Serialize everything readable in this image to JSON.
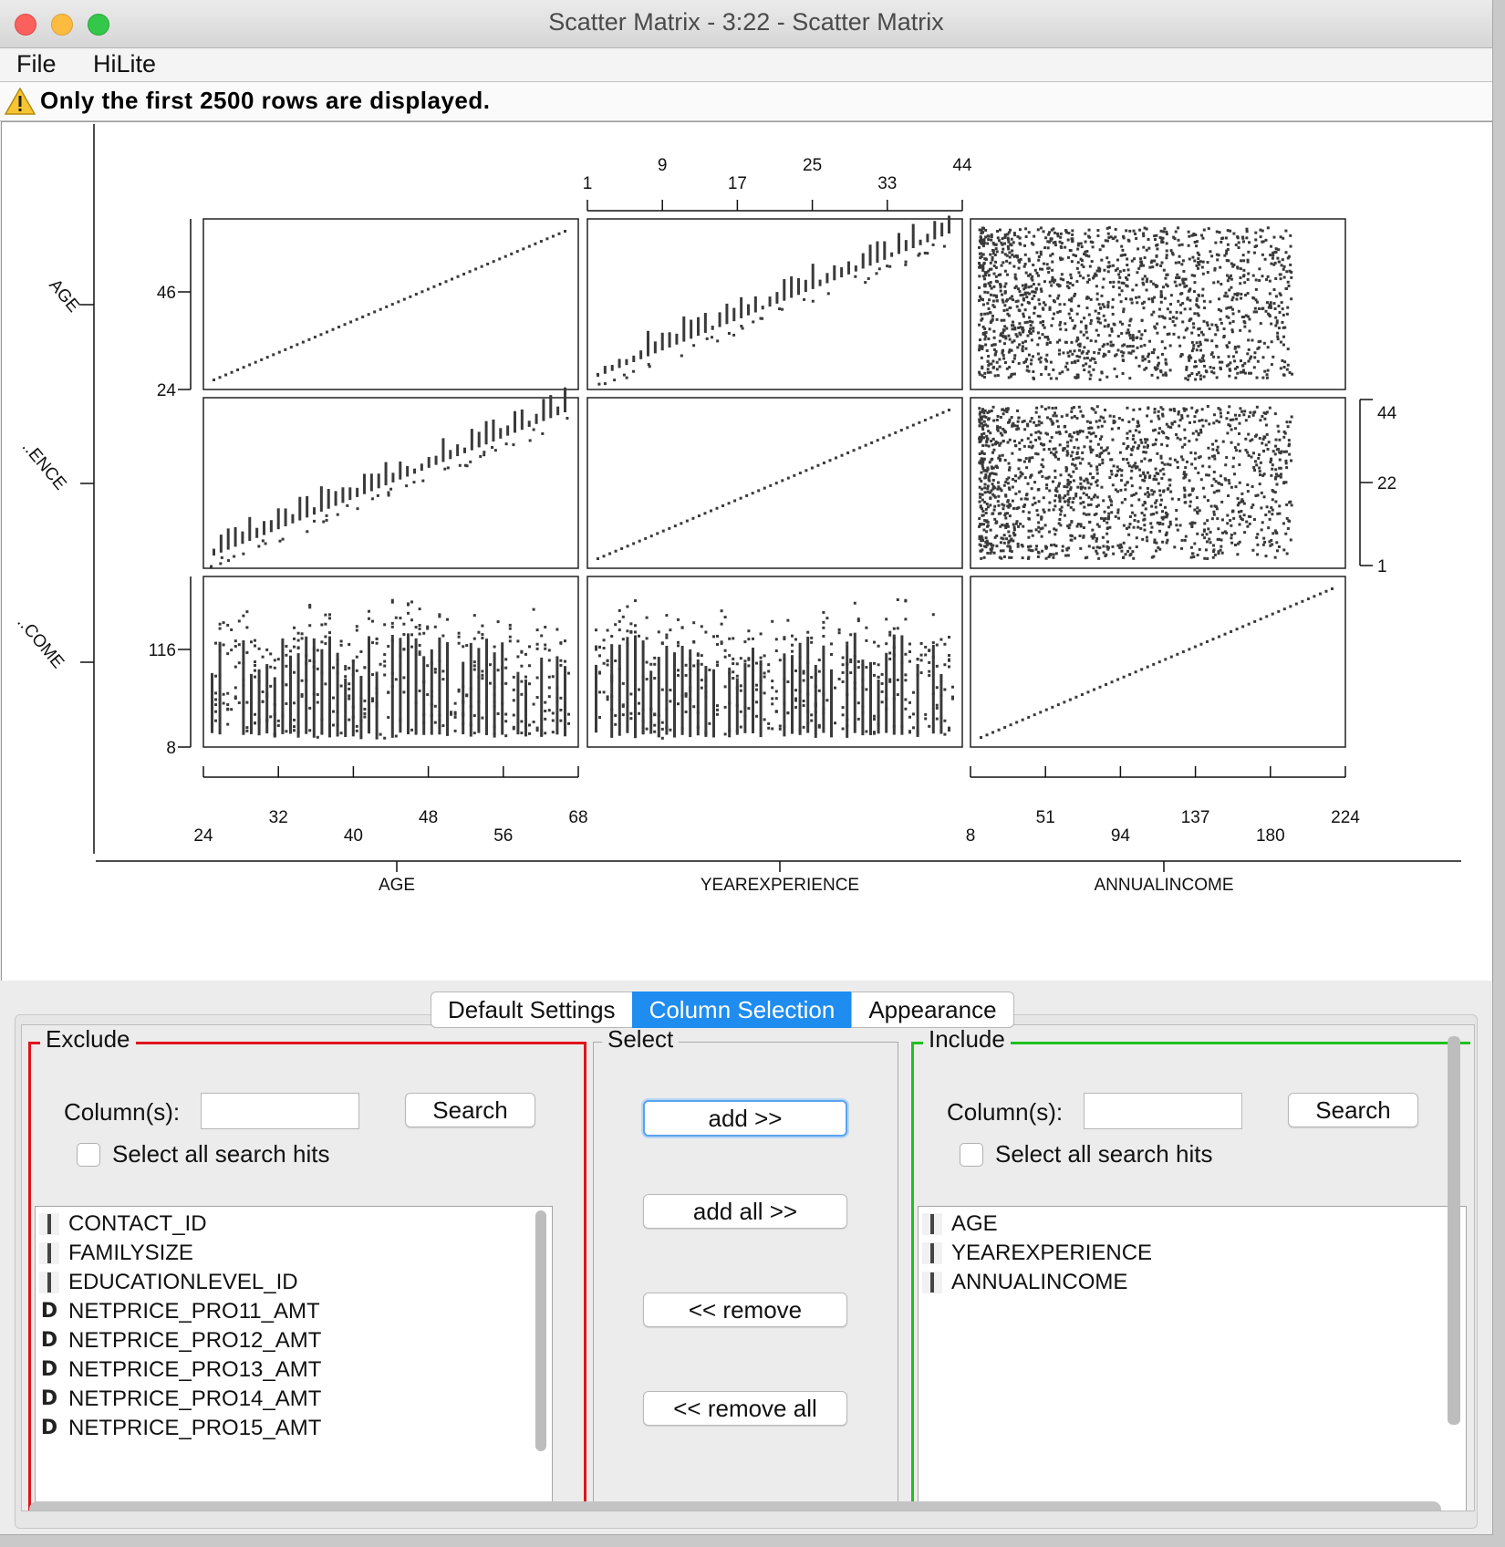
{
  "window": {
    "title": "Scatter Matrix - 3:22 - Scatter Matrix"
  },
  "menu": {
    "items": [
      "File",
      "HiLite"
    ]
  },
  "warning": {
    "icon": "warning-icon",
    "text": "Only the first 2500 rows are displayed."
  },
  "chart_data": {
    "type": "scatter",
    "title": "",
    "variables": [
      "AGE",
      "YEAREXPERIENCE",
      "ANNUALINCOME"
    ],
    "row_labels": [
      "AGE",
      "..ENCE",
      "..COME"
    ],
    "axes": {
      "AGE": {
        "range": [
          24,
          68
        ],
        "ticks": [
          "24",
          "32",
          "40",
          "48",
          "56",
          "68"
        ],
        "left_ticks": [
          "24",
          "46"
        ]
      },
      "YEAREXPERIENCE": {
        "range": [
          1,
          44
        ],
        "ticks": [
          "1",
          "9",
          "17",
          "25",
          "33",
          "44"
        ],
        "right_ticks": [
          "1",
          "22",
          "44"
        ]
      },
      "ANNUALINCOME": {
        "range": [
          8,
          224
        ],
        "ticks": [
          "8",
          "51",
          "94",
          "137",
          "180",
          "224"
        ],
        "left_ticks": [
          "8",
          "116"
        ]
      }
    },
    "panels": [
      {
        "row": "AGE",
        "col": "AGE",
        "pattern": "diagonal-line"
      },
      {
        "row": "AGE",
        "col": "YEAREXPERIENCE",
        "pattern": "increasing-band"
      },
      {
        "row": "AGE",
        "col": "ANNUALINCOME",
        "pattern": "dense-cloud"
      },
      {
        "row": "YEAREXPERIENCE",
        "col": "AGE",
        "pattern": "increasing-band"
      },
      {
        "row": "YEAREXPERIENCE",
        "col": "YEAREXPERIENCE",
        "pattern": "diagonal-line"
      },
      {
        "row": "YEAREXPERIENCE",
        "col": "ANNUALINCOME",
        "pattern": "dense-cloud"
      },
      {
        "row": "ANNUALINCOME",
        "col": "AGE",
        "pattern": "vertical-stripes"
      },
      {
        "row": "ANNUALINCOME",
        "col": "YEAREXPERIENCE",
        "pattern": "vertical-stripes"
      },
      {
        "row": "ANNUALINCOME",
        "col": "ANNUALINCOME",
        "pattern": "diagonal-line"
      }
    ],
    "point_color": "#3a3a3a"
  },
  "tabs": {
    "items": [
      "Default Settings",
      "Column Selection",
      "Appearance"
    ],
    "active": "Column Selection"
  },
  "exclude": {
    "legend": "Exclude",
    "column_label": "Column(s):",
    "search_value": "",
    "search_button": "Search",
    "select_all_label": "Select all search hits",
    "border_color": "#e0141b",
    "items": [
      {
        "type": "I",
        "name": "CONTACT_ID"
      },
      {
        "type": "I",
        "name": "FAMILYSIZE"
      },
      {
        "type": "I",
        "name": "EDUCATIONLEVEL_ID"
      },
      {
        "type": "D",
        "name": "NETPRICE_PRO11_AMT"
      },
      {
        "type": "D",
        "name": "NETPRICE_PRO12_AMT"
      },
      {
        "type": "D",
        "name": "NETPRICE_PRO13_AMT"
      },
      {
        "type": "D",
        "name": "NETPRICE_PRO14_AMT"
      },
      {
        "type": "D",
        "name": "NETPRICE_PRO15_AMT"
      }
    ]
  },
  "select": {
    "legend": "Select",
    "add": "add >>",
    "add_all": "add all >>",
    "remove": "<< remove",
    "remove_all": "<< remove all"
  },
  "include": {
    "legend": "Include",
    "column_label": "Column(s):",
    "search_value": "",
    "search_button": "Search",
    "select_all_label": "Select all search hits",
    "border_color": "#1fc11f",
    "items": [
      {
        "type": "I",
        "name": "AGE"
      },
      {
        "type": "I",
        "name": "YEAREXPERIENCE"
      },
      {
        "type": "I",
        "name": "ANNUALINCOME"
      }
    ]
  }
}
